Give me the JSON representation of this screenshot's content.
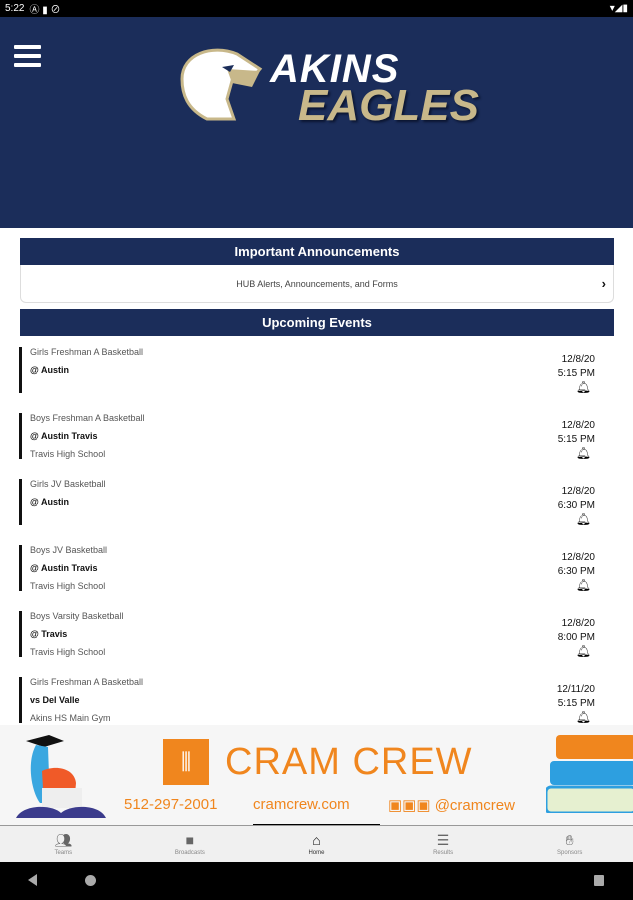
{
  "status_bar": {
    "time": "5:22"
  },
  "header": {
    "logo_line1": "AKINS",
    "logo_line2": "EAGLES",
    "background": "#1b2d5a",
    "accent": "#c8b88a"
  },
  "announcements": {
    "title": "Important Announcements",
    "link_label": "HUB Alerts, Announcements, and Forms"
  },
  "events": {
    "title": "Upcoming Events",
    "items": [
      {
        "category": "Girls Freshman A Basketball",
        "opponent": "@ Austin",
        "location": "",
        "date": "12/8/20",
        "time": "5:15 PM"
      },
      {
        "category": "Boys Freshman A Basketball",
        "opponent": "@ Austin Travis",
        "location": "Travis High School",
        "date": "12/8/20",
        "time": "5:15 PM"
      },
      {
        "category": "Girls JV Basketball",
        "opponent": "@ Austin",
        "location": "",
        "date": "12/8/20",
        "time": "6:30 PM"
      },
      {
        "category": "Boys JV Basketball",
        "opponent": "@ Austin Travis",
        "location": "Travis High School",
        "date": "12/8/20",
        "time": "6:30 PM"
      },
      {
        "category": "Boys Varsity Basketball",
        "opponent": "@ Travis",
        "location": "Travis High School",
        "date": "12/8/20",
        "time": "8:00 PM"
      },
      {
        "category": "Girls Freshman A Basketball",
        "opponent": "vs Del Valle",
        "location": "Akins HS Main Gym",
        "date": "12/11/20",
        "time": "5:15 PM"
      }
    ]
  },
  "ad": {
    "brand": "CRAM CREW",
    "phone": "512-297-2001",
    "website": "cramcrew.com",
    "social": "@cramcrew",
    "color": "#f0861e"
  },
  "tabs": [
    {
      "label": "Teams",
      "icon": "users-icon"
    },
    {
      "label": "Broadcasts",
      "icon": "video-icon"
    },
    {
      "label": "Home",
      "icon": "home-icon",
      "active": true
    },
    {
      "label": "Results",
      "icon": "list-icon"
    },
    {
      "label": "Sponsors",
      "icon": "handshake-icon"
    }
  ]
}
